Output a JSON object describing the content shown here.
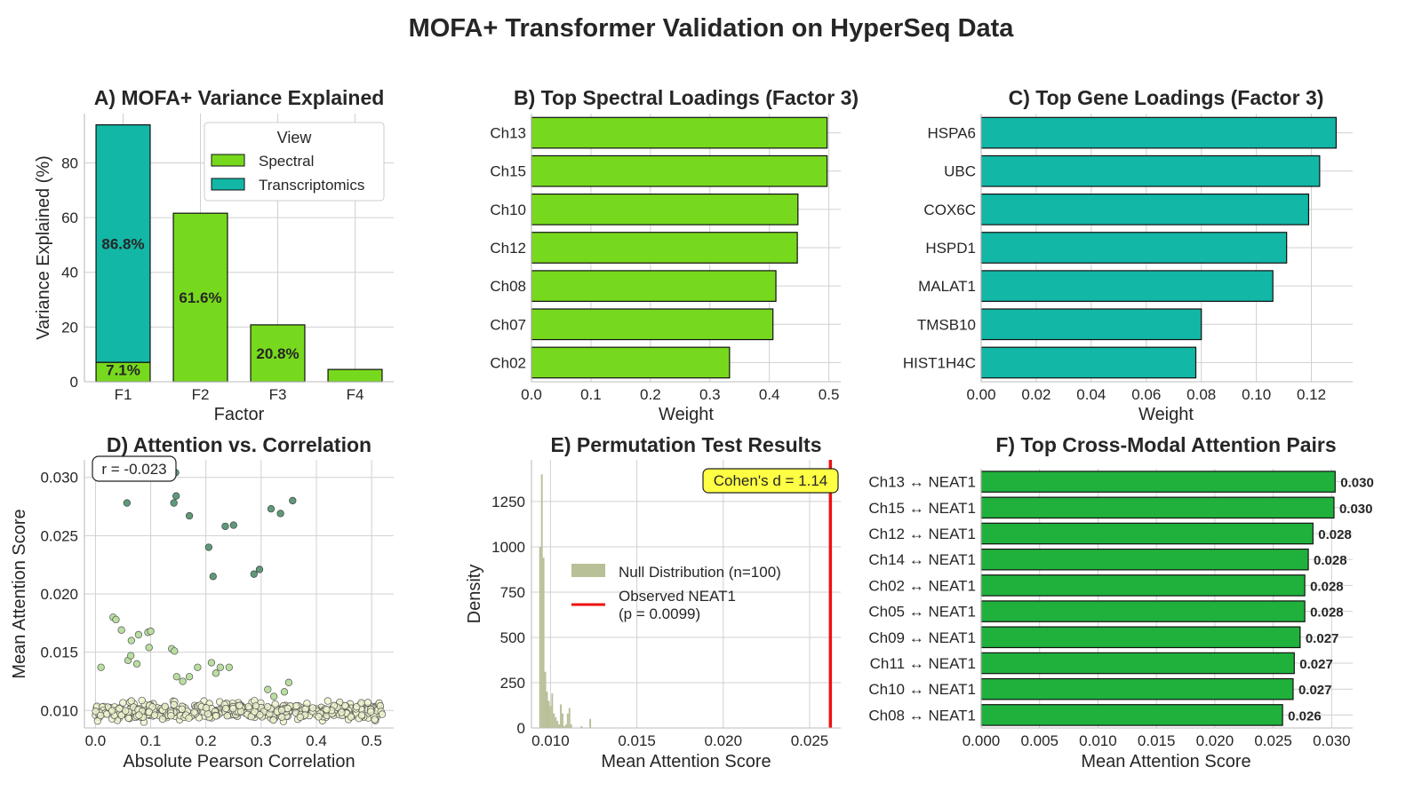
{
  "figure_title": "MOFA+ Transformer Validation on HyperSeq Data",
  "colors": {
    "spectral": "#77d91d",
    "transcriptomics": "#12b7a6",
    "pairs": "#20b13d",
    "null_hist": "#b8c098",
    "observed_line": "#ee1111",
    "scatter_high": "#5f9a78",
    "scatter_mid": "#b9dea0",
    "scatter_low": "#eef4cd",
    "cohens_box": "#ffff44"
  },
  "chart_data": [
    {
      "panel": "A",
      "type": "bar",
      "stacked": true,
      "title": "A) MOFA+ Variance Explained",
      "xlabel": "Factor",
      "ylabel": "Variance Explained (%)",
      "categories": [
        "F1",
        "F2",
        "F3",
        "F4"
      ],
      "series": [
        {
          "name": "Spectral",
          "values": [
            7.1,
            61.6,
            20.8,
            4.5
          ]
        },
        {
          "name": "Transcriptomics",
          "values": [
            86.8,
            0,
            0,
            0
          ]
        }
      ],
      "bar_labels": [
        "7.1%",
        "86.8%",
        "61.6%",
        "20.8%"
      ],
      "legend_title": "View",
      "legend": [
        "Spectral",
        "Transcriptomics"
      ],
      "legend_position": "top-right",
      "ylim": [
        0,
        98
      ],
      "yticks": [
        0,
        20,
        40,
        60,
        80
      ],
      "grid": true
    },
    {
      "panel": "B",
      "type": "bar",
      "orientation": "horizontal",
      "title": "B) Top Spectral Loadings (Factor 3)",
      "xlabel": "Weight",
      "categories": [
        "Ch13",
        "Ch15",
        "Ch10",
        "Ch12",
        "Ch08",
        "Ch07",
        "Ch02"
      ],
      "values": [
        0.497,
        0.497,
        0.448,
        0.447,
        0.411,
        0.406,
        0.333
      ],
      "xlim": [
        0,
        0.52
      ],
      "xticks": [
        "0.0",
        "0.1",
        "0.2",
        "0.3",
        "0.4",
        "0.5"
      ],
      "grid": true
    },
    {
      "panel": "C",
      "type": "bar",
      "orientation": "horizontal",
      "title": "C) Top Gene Loadings (Factor 3)",
      "xlabel": "Weight",
      "categories": [
        "HSPA6",
        "UBC",
        "COX6C",
        "HSPD1",
        "MALAT1",
        "TMSB10",
        "HIST1H4C"
      ],
      "values": [
        0.129,
        0.123,
        0.119,
        0.111,
        0.106,
        0.08,
        0.078
      ],
      "xlim": [
        0,
        0.135
      ],
      "xticks": [
        "0.00",
        "0.02",
        "0.04",
        "0.06",
        "0.08",
        "0.10",
        "0.12"
      ],
      "grid": true
    },
    {
      "panel": "D",
      "type": "scatter",
      "title": "D) Attention vs. Correlation",
      "xlabel": "Absolute Pearson Correlation",
      "ylabel": "Mean Attention Score",
      "annotation": "r = -0.023",
      "xlim": [
        -0.02,
        0.54
      ],
      "ylim": [
        0.0085,
        0.0315
      ],
      "xticks": [
        "0.0",
        "0.1",
        "0.2",
        "0.3",
        "0.4",
        "0.5"
      ],
      "yticks": [
        "0.010",
        "0.015",
        "0.020",
        "0.025",
        "0.030"
      ],
      "highlight_points": {
        "x": [
          0.108,
          0.145,
          0.142,
          0.146,
          0.057,
          0.17,
          0.235,
          0.25,
          0.318,
          0.335,
          0.357,
          0.205,
          0.297,
          0.287,
          0.213
        ],
        "y": [
          0.0304,
          0.0304,
          0.0278,
          0.0284,
          0.0278,
          0.0267,
          0.0258,
          0.0259,
          0.0273,
          0.0269,
          0.028,
          0.024,
          0.0221,
          0.0217,
          0.0215
        ]
      },
      "mid_points": {
        "x": [
          0.032,
          0.037,
          0.047,
          0.065,
          0.078,
          0.095,
          0.1,
          0.01,
          0.059,
          0.064,
          0.138,
          0.143,
          0.147,
          0.21,
          0.218,
          0.226,
          0.242,
          0.17,
          0.185,
          0.158,
          0.097,
          0.075,
          0.35,
          0.342,
          0.312,
          0.323
        ],
        "y": [
          0.018,
          0.0178,
          0.0169,
          0.016,
          0.0165,
          0.0167,
          0.0168,
          0.0137,
          0.0143,
          0.0147,
          0.0153,
          0.0151,
          0.0129,
          0.0141,
          0.0132,
          0.0137,
          0.0137,
          0.0129,
          0.0137,
          0.0125,
          0.0154,
          0.014,
          0.0124,
          0.0116,
          0.0118,
          0.0112
        ]
      },
      "bulk": {
        "count": 420,
        "x_range": [
          0.0,
          0.52
        ],
        "y_range": [
          0.0089,
          0.0111
        ]
      },
      "grid": true
    },
    {
      "panel": "E",
      "type": "histogram",
      "title": "E) Permutation Test Results",
      "xlabel": "Mean Attention Score",
      "ylabel": "Density",
      "bin_edges_start": 0.00935,
      "bin_width": 0.0001,
      "densities": [
        1000,
        1400,
        940,
        310,
        200,
        150,
        120,
        190,
        80,
        60,
        40,
        20,
        130,
        80,
        10,
        20,
        80,
        110,
        20,
        0,
        0,
        0,
        0,
        0,
        10,
        0,
        0,
        0,
        0,
        50
      ],
      "observed_value": 0.0262,
      "legend": [
        "Null Distribution (n=100)",
        "Observed NEAT1\n(p = 0.0099)"
      ],
      "legend_position": "center-left",
      "annotation": "Cohen's d = 1.14",
      "xlim": [
        0.0089,
        0.0268
      ],
      "ylim": [
        0,
        1480
      ],
      "xticks": [
        "0.010",
        "0.015",
        "0.020",
        "0.025"
      ],
      "yticks": [
        "0",
        "250",
        "500",
        "750",
        "1000",
        "1250"
      ],
      "grid": true
    },
    {
      "panel": "F",
      "type": "bar",
      "orientation": "horizontal",
      "title": "F) Top Cross-Modal Attention Pairs",
      "xlabel": "Mean Attention Score",
      "categories": [
        "Ch13 ↔ NEAT1",
        "Ch15 ↔ NEAT1",
        "Ch12 ↔ NEAT1",
        "Ch14 ↔ NEAT1",
        "Ch02 ↔ NEAT1",
        "Ch05 ↔ NEAT1",
        "Ch09 ↔ NEAT1",
        "Ch11 ↔ NEAT1",
        "Ch10 ↔ NEAT1",
        "Ch08 ↔ NEAT1"
      ],
      "values": [
        0.0303,
        0.0302,
        0.0284,
        0.028,
        0.0277,
        0.0277,
        0.0273,
        0.0268,
        0.0267,
        0.0258
      ],
      "value_labels": [
        "0.030",
        "0.030",
        "0.028",
        "0.028",
        "0.028",
        "0.028",
        "0.027",
        "0.027",
        "0.027",
        "0.026"
      ],
      "xlim": [
        0,
        0.0318
      ],
      "xticks": [
        "0.000",
        "0.005",
        "0.010",
        "0.015",
        "0.020",
        "0.025",
        "0.030"
      ],
      "grid": true
    }
  ]
}
